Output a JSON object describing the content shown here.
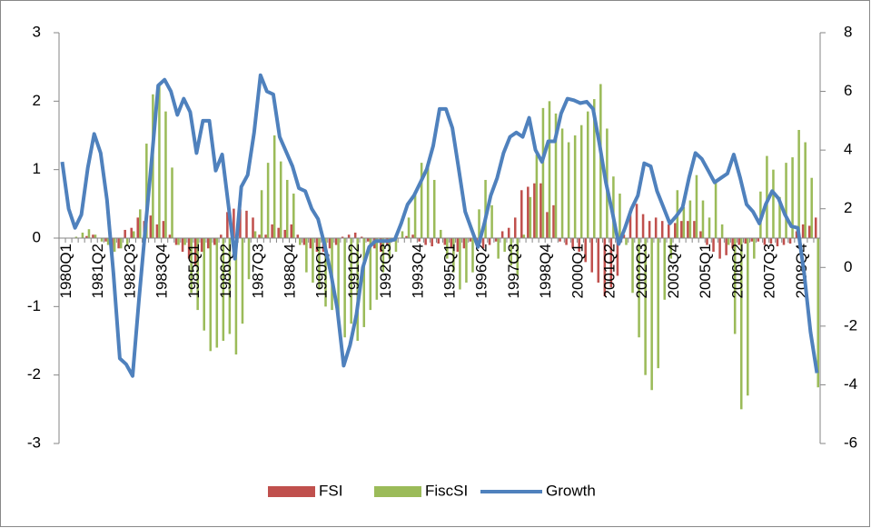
{
  "chart_data": {
    "type": "bar-line",
    "categories": [
      "1980Q1",
      null,
      null,
      null,
      null,
      "1981Q2",
      null,
      null,
      null,
      null,
      "1982Q3",
      null,
      null,
      null,
      null,
      "1983Q4",
      null,
      null,
      null,
      null,
      "1985Q1",
      null,
      null,
      null,
      null,
      "1986Q2",
      null,
      null,
      null,
      null,
      "1987Q3",
      null,
      null,
      null,
      null,
      "1988Q4",
      null,
      null,
      null,
      null,
      "1990Q1",
      null,
      null,
      null,
      null,
      "1991Q2",
      null,
      null,
      null,
      null,
      "1992Q3",
      null,
      null,
      null,
      null,
      "1993Q4",
      null,
      null,
      null,
      null,
      "1995Q1",
      null,
      null,
      null,
      null,
      "1996Q2",
      null,
      null,
      null,
      null,
      "1997Q3",
      null,
      null,
      null,
      null,
      "1998Q4",
      null,
      null,
      null,
      null,
      "2000Q1",
      null,
      null,
      null,
      null,
      "2001Q2",
      null,
      null,
      null,
      null,
      "2002Q3",
      null,
      null,
      null,
      null,
      "2003Q4",
      null,
      null,
      null,
      null,
      "2005Q1",
      null,
      null,
      null,
      null,
      "2006Q2",
      null,
      null,
      null,
      null,
      "2007Q3",
      null,
      null,
      null,
      null,
      "2008Q4",
      null,
      null,
      null
    ],
    "series": [
      {
        "name": "FSI",
        "color": "#c0504d",
        "kind": "bar",
        "values": [
          0,
          0,
          0,
          0,
          0.03,
          0.05,
          0,
          -0.05,
          -0.25,
          -0.15,
          0.12,
          0.15,
          0.3,
          0.25,
          0.33,
          0.2,
          0.25,
          0.05,
          -0.1,
          -0.2,
          -0.3,
          -0.4,
          -0.2,
          -0.15,
          -0.1,
          0.05,
          0.38,
          0.43,
          0.42,
          0.4,
          0.3,
          0.05,
          0.05,
          0.2,
          0.15,
          0.12,
          0.2,
          0.05,
          -0.1,
          -0.15,
          -0.2,
          -0.2,
          -0.15,
          -0.1,
          0.02,
          0.05,
          0.08,
          0.02,
          -0.05,
          -0.15,
          -0.2,
          -0.1,
          -0.05,
          0,
          0.03,
          0.05,
          -0.05,
          -0.1,
          -0.12,
          -0.08,
          -0.1,
          -0.15,
          -0.2,
          -0.15,
          -0.05,
          -0.1,
          -0.15,
          -0.1,
          -0.05,
          0.1,
          0.15,
          0.3,
          0.7,
          0.75,
          0.8,
          0.8,
          0.38,
          0.48,
          -0.05,
          -0.1,
          -0.15,
          -0.2,
          -0.35,
          -0.5,
          -0.65,
          -0.85,
          -0.72,
          -0.55,
          0.05,
          0.35,
          0.5,
          0.35,
          0.25,
          0.3,
          0.25,
          0.2,
          0.22,
          0.25,
          0.25,
          0.25,
          0.1,
          -0.1,
          -0.2,
          -0.3,
          -0.25,
          -0.15,
          -0.1,
          -0.08,
          -0.05,
          -0.05,
          -0.1,
          -0.08,
          -0.12,
          -0.1,
          -0.08,
          0.1,
          0.2,
          0.18,
          0.3
        ]
      },
      {
        "name": "FiscSI",
        "color": "#9bbb59",
        "kind": "bar",
        "values": [
          0,
          0,
          0.02,
          0.08,
          0.13,
          0.05,
          -0.05,
          -0.1,
          -0.2,
          -0.15,
          -0.1,
          0.1,
          0.42,
          1.38,
          2.1,
          2.25,
          1.85,
          1.03,
          -0.1,
          -0.1,
          -0.8,
          -1.05,
          -1.35,
          -1.65,
          -1.6,
          -1.5,
          -1.4,
          -1.7,
          -1.25,
          -0.6,
          0.1,
          0.7,
          1.1,
          1.5,
          1.12,
          0.85,
          0.65,
          -0.1,
          -0.5,
          -0.65,
          -0.75,
          -1.0,
          -1.05,
          -1.2,
          -1.45,
          -1.25,
          -1.5,
          -1.3,
          -1.05,
          -0.9,
          -0.5,
          -0.3,
          -0.2,
          0.1,
          0.3,
          0.65,
          1.1,
          1.05,
          0.85,
          0.12,
          -0.3,
          -0.5,
          -0.75,
          -0.65,
          -0.5,
          0.42,
          0.85,
          0.48,
          -0.3,
          -0.2,
          -0.4,
          -0.55,
          0.05,
          0.6,
          1.22,
          1.9,
          2.0,
          1.82,
          1.6,
          1.4,
          1.5,
          1.65,
          1.85,
          2.03,
          2.25,
          1.6,
          0.9,
          0.65,
          -0.1,
          -0.8,
          -1.45,
          -2.0,
          -2.22,
          -1.9,
          -0.9,
          -0.3,
          0.7,
          0.45,
          0.55,
          0.92,
          0.55,
          0.3,
          0.82,
          0.2,
          -0.1,
          -1.4,
          -2.5,
          -2.3,
          -0.3,
          0.68,
          1.2,
          1.0,
          0.6,
          1.1,
          1.18,
          1.58,
          1.4,
          0.88,
          -2.18
        ]
      },
      {
        "name": "Growth",
        "color": "#4f81bd",
        "kind": "line",
        "axis": "y2",
        "values": [
          3.6,
          2.0,
          1.35,
          1.8,
          3.4,
          4.55,
          3.9,
          2.3,
          -0.2,
          -3.1,
          -3.3,
          -3.7,
          -1.1,
          1.35,
          3.7,
          6.2,
          6.4,
          6.0,
          5.2,
          5.75,
          5.3,
          3.9,
          5.0,
          5.0,
          3.3,
          3.85,
          2.1,
          0.3,
          2.75,
          3.15,
          4.6,
          6.55,
          6.0,
          5.9,
          4.45,
          3.95,
          3.45,
          2.7,
          2.6,
          2.0,
          1.65,
          0.8,
          -0.2,
          -1.4,
          -3.35,
          -2.65,
          -1.6,
          0,
          0.7,
          0.9,
          0.9,
          0.9,
          0.95,
          1.5,
          2.15,
          2.45,
          2.9,
          3.35,
          4.15,
          5.4,
          5.4,
          4.75,
          3.35,
          1.9,
          1.3,
          0.7,
          1.5,
          2.45,
          3.05,
          3.9,
          4.45,
          4.6,
          4.45,
          5.1,
          4.0,
          3.6,
          4.3,
          4.3,
          5.25,
          5.75,
          5.7,
          5.6,
          5.65,
          5.4,
          4.2,
          2.9,
          1.9,
          0.8,
          1.35,
          2.0,
          2.45,
          3.55,
          3.45,
          2.6,
          2.05,
          1.5,
          1.75,
          2.05,
          3.05,
          3.9,
          3.7,
          3.3,
          2.9,
          3.05,
          3.2,
          3.85,
          3.05,
          2.15,
          1.9,
          1.5,
          2.15,
          2.6,
          2.35,
          1.8,
          1.4,
          1.35,
          -0.2,
          -2.2,
          -3.6
        ]
      }
    ],
    "ylim": [
      -3,
      3
    ],
    "yticks": [
      -3,
      -2,
      -1,
      0,
      1,
      2,
      3
    ],
    "y2lim": [
      -6,
      8
    ],
    "y2ticks": [
      -6,
      -4,
      -2,
      0,
      2,
      4,
      6,
      8
    ],
    "grid": false,
    "legend": "bottom"
  }
}
